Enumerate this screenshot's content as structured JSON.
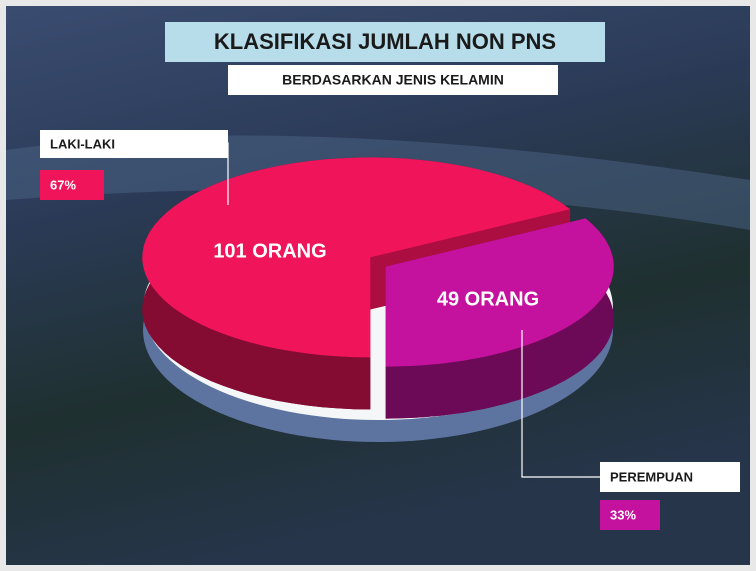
{
  "chart_data": {
    "type": "pie",
    "title": "KLASIFIKASI JUMLAH NON PNS",
    "subtitle": "BERDASARKAN JENIS KELAMIN",
    "categories": [
      "LAKI-LAKI",
      "PEREMPUAN"
    ],
    "values": [
      67,
      33
    ],
    "value_labels": [
      "67%",
      "33%"
    ],
    "annotations": [
      "101 ORANG",
      "49 ORANG"
    ],
    "colors": [
      "#f0145a",
      "#c4129e"
    ]
  }
}
